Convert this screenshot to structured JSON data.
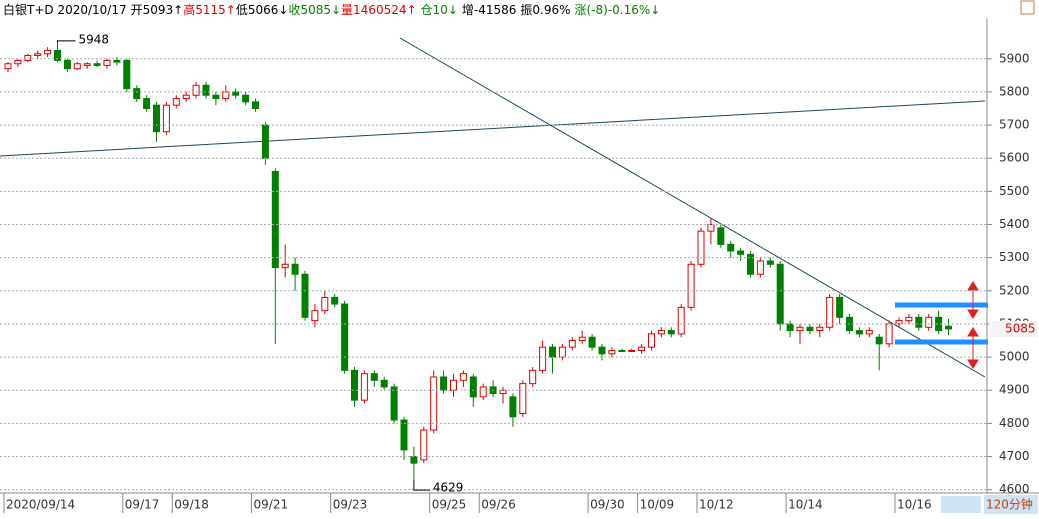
{
  "header": {
    "items": [
      {
        "text": "白银T+D 2020/10/17",
        "color": "#000000"
      },
      {
        "text": "开5093↑",
        "color": "#000000"
      },
      {
        "text": "高5115↑",
        "color": "#e00000"
      },
      {
        "text": "低5066↓",
        "color": "#000000"
      },
      {
        "text": "收5085↓",
        "color": "#008000"
      },
      {
        "text": "量1460524↑",
        "color": "#e00000"
      },
      {
        "text": "仓10↓",
        "color": "#008000"
      },
      {
        "text": "增-41586",
        "color": "#000000"
      },
      {
        "text": "振0.96%",
        "color": "#000000"
      },
      {
        "text": "涨(-8)-0.16%↓",
        "color": "#008000"
      }
    ]
  },
  "period_label": "120分钟",
  "chart_data": {
    "type": "candlestick",
    "up_color": "#e00000",
    "down_color": "#008000",
    "grid": true,
    "ylim": [
      4590,
      6023
    ],
    "yticks": [
      4600,
      4700,
      4800,
      4900,
      5000,
      5100,
      5200,
      5300,
      5400,
      5500,
      5600,
      5700,
      5800,
      5900
    ],
    "categories": [
      "2020/09/14",
      null,
      null,
      null,
      null,
      null,
      null,
      null,
      null,
      null,
      null,
      null,
      "09/17",
      null,
      null,
      null,
      null,
      "09/18",
      null,
      null,
      null,
      null,
      null,
      null,
      null,
      "09/21",
      null,
      null,
      null,
      null,
      null,
      null,
      null,
      "09/23",
      null,
      null,
      null,
      null,
      null,
      null,
      null,
      null,
      null,
      "09/25",
      null,
      null,
      null,
      null,
      "09/26",
      null,
      null,
      null,
      null,
      null,
      null,
      null,
      null,
      null,
      null,
      "09/30",
      null,
      null,
      null,
      null,
      "10/09",
      null,
      null,
      null,
      null,
      null,
      "10/12",
      null,
      null,
      null,
      null,
      null,
      null,
      null,
      null,
      "10/14",
      null,
      null,
      null,
      null,
      null,
      null,
      null,
      null,
      null,
      null,
      "10/16",
      null,
      null,
      null,
      null,
      null
    ],
    "ohlc": [
      [
        5870,
        5890,
        5860,
        5885
      ],
      [
        5885,
        5900,
        5875,
        5895
      ],
      [
        5895,
        5915,
        5890,
        5910
      ],
      [
        5910,
        5925,
        5900,
        5915
      ],
      [
        5915,
        5935,
        5905,
        5925
      ],
      [
        5925,
        5948,
        5890,
        5895
      ],
      [
        5895,
        5900,
        5860,
        5870
      ],
      [
        5870,
        5890,
        5865,
        5885
      ],
      [
        5880,
        5890,
        5870,
        5885
      ],
      [
        5885,
        5895,
        5875,
        5880
      ],
      [
        5880,
        5900,
        5870,
        5895
      ],
      [
        5895,
        5905,
        5880,
        5890
      ],
      [
        5895,
        5900,
        5800,
        5810
      ],
      [
        5810,
        5820,
        5770,
        5780
      ],
      [
        5780,
        5790,
        5740,
        5750
      ],
      [
        5760,
        5770,
        5650,
        5680
      ],
      [
        5680,
        5770,
        5670,
        5760
      ],
      [
        5760,
        5790,
        5750,
        5780
      ],
      [
        5780,
        5800,
        5770,
        5790
      ],
      [
        5790,
        5830,
        5780,
        5820
      ],
      [
        5820,
        5830,
        5780,
        5790
      ],
      [
        5790,
        5800,
        5760,
        5780
      ],
      [
        5780,
        5820,
        5770,
        5800
      ],
      [
        5800,
        5810,
        5780,
        5790
      ],
      [
        5790,
        5800,
        5760,
        5770
      ],
      [
        5770,
        5780,
        5740,
        5750
      ],
      [
        5700,
        5710,
        5580,
        5600
      ],
      [
        5560,
        5570,
        5040,
        5270
      ],
      [
        5270,
        5340,
        5240,
        5280
      ],
      [
        5280,
        5300,
        5200,
        5250
      ],
      [
        5250,
        5260,
        5110,
        5120
      ],
      [
        5110,
        5160,
        5090,
        5140
      ],
      [
        5140,
        5200,
        5130,
        5180
      ],
      [
        5180,
        5190,
        5150,
        5160
      ],
      [
        5160,
        5170,
        4950,
        4960
      ],
      [
        4960,
        4970,
        4850,
        4870
      ],
      [
        4870,
        4960,
        4860,
        4950
      ],
      [
        4950,
        4960,
        4910,
        4930
      ],
      [
        4930,
        4940,
        4900,
        4910
      ],
      [
        4910,
        4920,
        4800,
        4810
      ],
      [
        4810,
        4820,
        4690,
        4720
      ],
      [
        4700,
        4730,
        4629,
        4680
      ],
      [
        4690,
        4790,
        4680,
        4780
      ],
      [
        4780,
        4960,
        4770,
        4940
      ],
      [
        4940,
        4960,
        4890,
        4900
      ],
      [
        4900,
        4950,
        4880,
        4930
      ],
      [
        4930,
        4960,
        4910,
        4950
      ],
      [
        4940,
        4950,
        4850,
        4880
      ],
      [
        4880,
        4920,
        4870,
        4910
      ],
      [
        4910,
        4930,
        4880,
        4890
      ],
      [
        4890,
        4910,
        4860,
        4900
      ],
      [
        4880,
        4890,
        4790,
        4820
      ],
      [
        4830,
        4930,
        4820,
        4920
      ],
      [
        4920,
        4970,
        4910,
        4960
      ],
      [
        4960,
        5050,
        4950,
        5030
      ],
      [
        5030,
        5040,
        4950,
        5000
      ],
      [
        5000,
        5040,
        4990,
        5030
      ],
      [
        5030,
        5060,
        5020,
        5050
      ],
      [
        5050,
        5080,
        5040,
        5060
      ],
      [
        5060,
        5070,
        5020,
        5030
      ],
      [
        5030,
        5040,
        4990,
        5010
      ],
      [
        5010,
        5030,
        5000,
        5020
      ],
      [
        5020,
        5025,
        5015,
        5018
      ],
      [
        5020,
        5025,
        5015,
        5020
      ],
      [
        5020,
        5040,
        5010,
        5030
      ],
      [
        5030,
        5080,
        5020,
        5070
      ],
      [
        5070,
        5090,
        5060,
        5080
      ],
      [
        5080,
        5090,
        5060,
        5070
      ],
      [
        5070,
        5160,
        5060,
        5150
      ],
      [
        5150,
        5290,
        5140,
        5280
      ],
      [
        5280,
        5390,
        5270,
        5380
      ],
      [
        5380,
        5420,
        5340,
        5400
      ],
      [
        5390,
        5400,
        5330,
        5340
      ],
      [
        5340,
        5350,
        5300,
        5320
      ],
      [
        5320,
        5330,
        5290,
        5310
      ],
      [
        5310,
        5320,
        5240,
        5250
      ],
      [
        5250,
        5300,
        5240,
        5290
      ],
      [
        5290,
        5300,
        5270,
        5280
      ],
      [
        5280,
        5290,
        5080,
        5100
      ],
      [
        5100,
        5110,
        5060,
        5080
      ],
      [
        5080,
        5100,
        5040,
        5090
      ],
      [
        5090,
        5100,
        5070,
        5080
      ],
      [
        5080,
        5100,
        5060,
        5090
      ],
      [
        5090,
        5190,
        5080,
        5180
      ],
      [
        5180,
        5190,
        5100,
        5120
      ],
      [
        5120,
        5130,
        5070,
        5080
      ],
      [
        5080,
        5090,
        5060,
        5070
      ],
      [
        5070,
        5090,
        5060,
        5080
      ],
      [
        5060,
        5070,
        4960,
        5040
      ],
      [
        5040,
        5110,
        5030,
        5100
      ],
      [
        5100,
        5120,
        5090,
        5110
      ],
      [
        5110,
        5130,
        5100,
        5120
      ],
      [
        5120,
        5130,
        5080,
        5090
      ],
      [
        5090,
        5130,
        5080,
        5120
      ],
      [
        5120,
        5140,
        5070,
        5080
      ],
      [
        5093,
        5115,
        5066,
        5085
      ]
    ]
  }
}
